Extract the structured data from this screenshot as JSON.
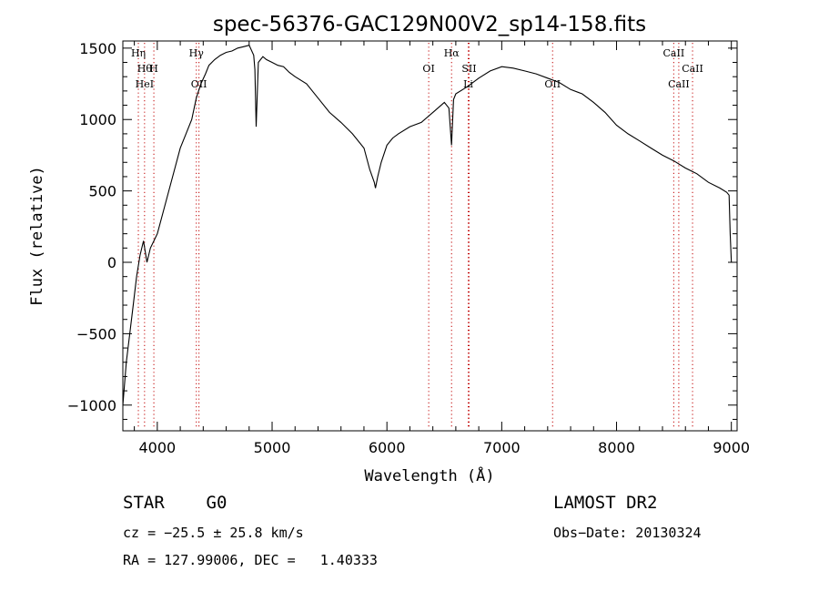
{
  "chart_data": {
    "type": "line",
    "title": "spec-56376-GAC129N00V2_sp14-158.fits",
    "xlabel": "Wavelength (Å)",
    "ylabel": "Flux (relative)",
    "xlim": [
      3700,
      9050
    ],
    "ylim": [
      -1180,
      1550
    ],
    "grid": false,
    "xticks": [
      {
        "v": 4000,
        "label": "4000"
      },
      {
        "v": 5000,
        "label": "5000"
      },
      {
        "v": 6000,
        "label": "6000"
      },
      {
        "v": 7000,
        "label": "7000"
      },
      {
        "v": 8000,
        "label": "8000"
      },
      {
        "v": 9000,
        "label": "9000"
      }
    ],
    "yticks": [
      {
        "v": 1500,
        "label": "1500"
      },
      {
        "v": 1000,
        "label": "1000"
      },
      {
        "v": 500,
        "label": "500"
      },
      {
        "v": 0,
        "label": "0"
      },
      {
        "v": -500,
        "label": "−500"
      },
      {
        "v": -1000,
        "label": "−1000"
      }
    ],
    "series": [
      {
        "x": [
          3700,
          3730,
          3760,
          3790,
          3820,
          3850,
          3880,
          3910,
          3940,
          3970,
          4000,
          4050,
          4100,
          4150,
          4200,
          4250,
          4300,
          4340,
          4380,
          4420,
          4450,
          4500,
          4550,
          4600,
          4650,
          4700,
          4750,
          4800,
          4840,
          4850,
          4861,
          4880,
          4920,
          4950,
          5000,
          5050,
          5100,
          5150,
          5200,
          5300,
          5400,
          5500,
          5600,
          5700,
          5800,
          5850,
          5890,
          5900,
          5920,
          5950,
          6000,
          6050,
          6100,
          6200,
          6300,
          6400,
          6500,
          6540,
          6563,
          6580,
          6600,
          6700,
          6800,
          6900,
          7000,
          7100,
          7200,
          7300,
          7400,
          7500,
          7600,
          7700,
          7800,
          7900,
          8000,
          8100,
          8200,
          8300,
          8400,
          8500,
          8600,
          8700,
          8800,
          8900,
          8960,
          8980,
          8990,
          9000
        ],
        "y": [
          -1000,
          -700,
          -500,
          -300,
          -100,
          50,
          150,
          0,
          100,
          150,
          200,
          350,
          500,
          650,
          800,
          900,
          1000,
          1150,
          1250,
          1320,
          1380,
          1420,
          1450,
          1470,
          1480,
          1500,
          1510,
          1520,
          1450,
          1350,
          950,
          1400,
          1440,
          1420,
          1400,
          1380,
          1370,
          1330,
          1300,
          1250,
          1150,
          1050,
          980,
          900,
          800,
          650,
          560,
          520,
          600,
          700,
          820,
          870,
          900,
          950,
          980,
          1050,
          1120,
          1080,
          820,
          1140,
          1180,
          1230,
          1290,
          1340,
          1370,
          1360,
          1340,
          1320,
          1290,
          1260,
          1210,
          1180,
          1120,
          1050,
          960,
          900,
          850,
          800,
          750,
          710,
          660,
          620,
          560,
          520,
          490,
          470,
          200,
          0
        ]
      }
    ],
    "emission_lines": [
      {
        "x": 3835,
        "label": "Hη",
        "row": 0
      },
      {
        "x": 3889,
        "label": "Hθ",
        "row": 1
      },
      {
        "x": 3970,
        "label": "H",
        "row": 1
      },
      {
        "x": 3889,
        "label": "HeI",
        "row": 2
      },
      {
        "x": 4340,
        "label": "Hγ",
        "row": 0
      },
      {
        "x": 4363,
        "label": "OII",
        "row": 2
      },
      {
        "x": 6364,
        "label": "OI",
        "row": 1
      },
      {
        "x": 6563,
        "label": "Hα",
        "row": 0
      },
      {
        "x": 6716,
        "label": "SII",
        "row": 1
      },
      {
        "x": 6708,
        "label": "Li",
        "row": 2
      },
      {
        "x": 7443,
        "label": "OII",
        "row": 2
      },
      {
        "x": 8498,
        "label": "CaII",
        "row": 0
      },
      {
        "x": 8542,
        "label": "CaII",
        "row": 2
      },
      {
        "x": 8662,
        "label": "CaII",
        "row": 1
      }
    ]
  },
  "info": {
    "object_type": "STAR    G0",
    "survey": "LAMOST DR2",
    "redshift": "cz = −25.5 ± 25.8 km/s",
    "obs_date": "Obs−Date: 20130324",
    "coords": "RA = 127.99006, DEC =   1.40333"
  }
}
